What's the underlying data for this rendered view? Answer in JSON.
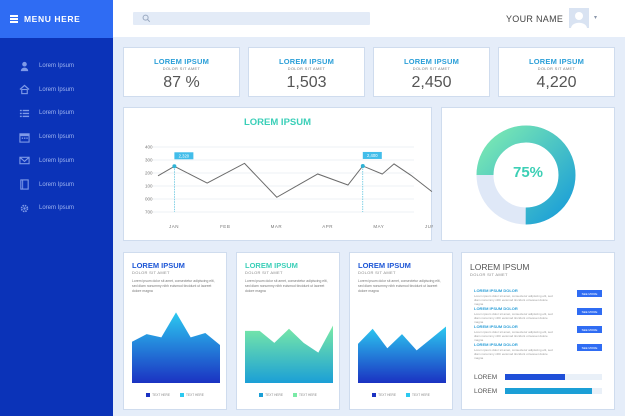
{
  "sidebar": {
    "menu_label": "MENU HERE",
    "items": [
      {
        "label": "Lorem Ipsum",
        "icon": "user-icon"
      },
      {
        "label": "Lorem Ipsum",
        "icon": "home-icon"
      },
      {
        "label": "Lorem Ipsum",
        "icon": "list-icon"
      },
      {
        "label": "Lorem Ipsum",
        "icon": "calendar-icon"
      },
      {
        "label": "Lorem Ipsum",
        "icon": "mail-icon"
      },
      {
        "label": "Lorem Ipsum",
        "icon": "book-icon"
      },
      {
        "label": "Lorem Ipsum",
        "icon": "gear-icon"
      }
    ]
  },
  "topbar": {
    "username": "YOUR NAME",
    "caret": "▾"
  },
  "stats": [
    {
      "title": "LOREM IPSUM",
      "sub": "DOLOR SIT AMET",
      "value": "87 %"
    },
    {
      "title": "LOREM IPSUM",
      "sub": "DOLOR SIT AMET",
      "value": "1,503"
    },
    {
      "title": "LOREM IPSUM",
      "sub": "DOLOR SIT AMET",
      "value": "2,450"
    },
    {
      "title": "LOREM IPSUM",
      "sub": "DOLOR SIT AMET",
      "value": "4,220"
    }
  ],
  "chart_data": [
    {
      "type": "line",
      "title": "LOREM IPSUM",
      "categories": [
        "JAN",
        "FEB",
        "MAR",
        "APR",
        "MAY",
        "JUN"
      ],
      "yticks": [
        "400",
        "300",
        "200",
        "100",
        "000",
        "700"
      ],
      "ylim": [
        0,
        6
      ],
      "x": [
        0,
        0.32,
        0.96,
        1.69,
        2.32,
        2.82,
        3.12,
        3.71,
        4.0,
        4.38,
        4.61,
        4.94,
        5.35
      ],
      "values": [
        3.34,
        4.22,
        2.67,
        4.49,
        1.36,
        2.71,
        3.51,
        2.49,
        4.25,
        3.5,
        4.44,
        3.39,
        1.88
      ],
      "grid": true,
      "annotations": [
        {
          "text": "2,320",
          "point_index": 1
        },
        {
          "text": "2,400",
          "point_index": 8
        }
      ],
      "colors": {
        "line": "#6b6b6b",
        "point": "#2fb3d6",
        "tag": "#42bdea"
      }
    },
    {
      "type": "pie",
      "label": "75%",
      "values": [
        75,
        25
      ],
      "colors": {
        "start": "#1a9ed8",
        "end": "#7be9b2",
        "rest": "#dfe8f7"
      }
    },
    {
      "type": "area",
      "title": "LOREM IPSUM",
      "sub": "DOLOR SIT AMET",
      "text": "Lorem ipsum dolor sit amet, consectetur adipiscing elit, sed diam nonummy nibh euismod tincidunt ut laoreet dolore magna",
      "x": [
        0,
        1,
        2,
        3,
        4,
        5,
        6
      ],
      "values": [
        38,
        45,
        42,
        65,
        42,
        46,
        35
      ],
      "ylim": [
        0,
        70
      ],
      "legend": [
        "TEXT HERE",
        "TEXT HERE"
      ],
      "colors": {
        "top": "#2cc9f0",
        "bottom": "#1b32c2",
        "title": "#1e57d6"
      }
    },
    {
      "type": "area",
      "title": "LOREM IPSUM",
      "sub": "DOLOR SIT AMET",
      "text": "Lorem ipsum dolor sit amet, consectetur adipiscing elit, sed diam nonummy nibh euismod tincidunt ut laoreet dolore magna",
      "x": [
        0,
        1,
        2,
        3,
        4,
        5,
        6
      ],
      "values": [
        48,
        48,
        37,
        50,
        37,
        28,
        53
      ],
      "ylim": [
        0,
        70
      ],
      "legend": [
        "TEXT HERE",
        "TEXT HERE"
      ],
      "colors": {
        "top": "#7aeaa6",
        "bottom": "#1b9fd6",
        "title": "#3bcfb8"
      }
    },
    {
      "type": "area",
      "title": "LOREM IPSUM",
      "sub": "DOLOR SIT AMET",
      "text": "Lorem ipsum dolor sit amet, consectetur adipiscing elit, sed diam nonummy nibh euismod tincidunt ut laoreet dolore magna",
      "x": [
        0,
        1,
        2,
        3,
        4,
        5,
        6
      ],
      "values": [
        36,
        50,
        32,
        45,
        30,
        41,
        52
      ],
      "ylim": [
        0,
        70
      ],
      "legend": [
        "TEXT HERE",
        "TEXT HERE"
      ],
      "colors": {
        "top": "#2cc9f0",
        "bottom": "#1b32c2",
        "title": "#1e57d6"
      }
    }
  ],
  "list_panel": {
    "title": "LOREM IPSUM",
    "sub": "DOLOR SIT AMET",
    "items": [
      {
        "heading": "LOREM IPSUM DOLOR",
        "text": "Lorem ipsum dolor sit amet, consectetur adipiscing elit, sed diam nonummy nibh euismod tincidunt ut laoreet dolore magna",
        "button": "SEE MORE"
      },
      {
        "heading": "LOREM IPSUM DOLOR",
        "text": "Lorem ipsum dolor sit amet, consectetur adipiscing elit, sed diam nonummy nibh euismod tincidunt ut laoreet dolore magna",
        "button": "SEE MORE"
      },
      {
        "heading": "LOREM IPSUM DOLOR",
        "text": "Lorem ipsum dolor sit amet, consectetur adipiscing elit, sed diam nonummy nibh euismod tincidunt ut laoreet dolore magna",
        "button": "SEE MORE"
      },
      {
        "heading": "LOREM IPSUM DOLOR",
        "text": "Lorem ipsum dolor sit amet, consectetur adipiscing elit, sed diam nonummy nibh euismod tincidunt ut laoreet dolore magna",
        "button": "SEE MORE"
      }
    ],
    "bars": [
      {
        "label": "LOREM",
        "fraction": 0.62,
        "color": "#1f4fd8"
      },
      {
        "label": "LOREM",
        "fraction": 0.9,
        "color": "#1b9fd6"
      }
    ]
  }
}
